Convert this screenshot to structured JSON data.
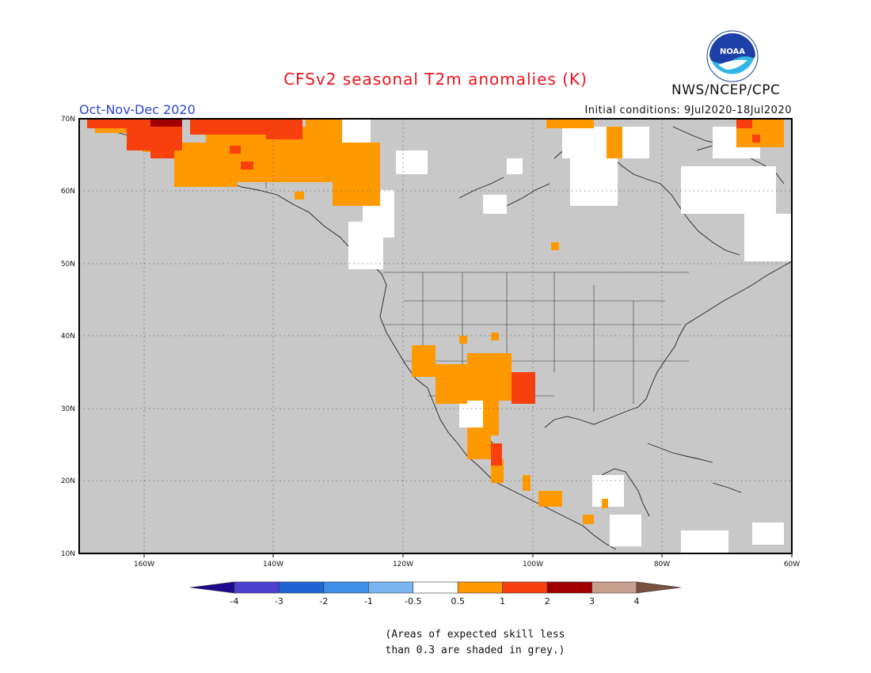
{
  "header": {
    "title": "CFSv2 seasonal T2m anomalies (K)",
    "period": "Oct-Nov-Dec 2020",
    "initial_conditions": "Initial conditions: 9Jul2020-18Jul2020",
    "agency": "NWS/NCEP/CPC",
    "logo_text": "NOAA"
  },
  "axes": {
    "lat_labels": [
      "70N",
      "60N",
      "50N",
      "40N",
      "30N",
      "20N",
      "10N"
    ],
    "lon_labels": [
      "160W",
      "140W",
      "120W",
      "100W",
      "80W",
      "60W"
    ],
    "lat_range": [
      10,
      70
    ],
    "lon_range": [
      -170,
      -60
    ]
  },
  "legend": {
    "labels": [
      "-4",
      "-3",
      "-2",
      "-1",
      "-0.5",
      "0.5",
      "1",
      "2",
      "3",
      "4"
    ],
    "colors": [
      "#1e0a8c",
      "#4b40cf",
      "#1f66d4",
      "#3f8fe8",
      "#7cb6f2",
      "#ffffff",
      "#ff9900",
      "#f8400e",
      "#a10000",
      "#c8a090",
      "#7a5040"
    ]
  },
  "note": {
    "line1": "(Areas of expected skill less",
    "line2": "than 0.3 are shaded in grey.)"
  },
  "colors": {
    "grey": "#c8c8c8",
    "white": "#ffffff",
    "orange": "#ff9900",
    "red_orange": "#f8400e",
    "dark_red": "#a10000"
  }
}
